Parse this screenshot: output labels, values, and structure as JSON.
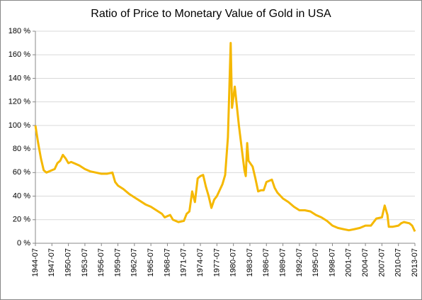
{
  "chart_data": {
    "type": "line",
    "title": "Ratio of Price to Monetary Value of Gold in USA",
    "x": [
      "1944-07",
      "1945-01",
      "1945-07",
      "1946-01",
      "1946-07",
      "1947-01",
      "1947-07",
      "1948-01",
      "1948-07",
      "1949-01",
      "1949-07",
      "1950-01",
      "1950-07",
      "1951-01",
      "1951-07",
      "1952-07",
      "1953-07",
      "1954-07",
      "1955-07",
      "1956-07",
      "1957-07",
      "1958-07",
      "1959-01",
      "1959-07",
      "1960-07",
      "1961-07",
      "1962-07",
      "1963-07",
      "1964-07",
      "1965-07",
      "1966-07",
      "1967-07",
      "1968-01",
      "1968-07",
      "1969-01",
      "1969-07",
      "1970-07",
      "1971-07",
      "1972-01",
      "1972-07",
      "1973-01",
      "1973-07",
      "1974-01",
      "1974-07",
      "1975-01",
      "1975-07",
      "1976-01",
      "1976-07",
      "1977-01",
      "1977-07",
      "1978-07",
      "1979-01",
      "1979-07",
      "1980-01",
      "1980-04",
      "1980-10",
      "1981-07",
      "1982-07",
      "1982-10",
      "1983-01",
      "1983-04",
      "1984-01",
      "1984-07",
      "1985-01",
      "1985-07",
      "1986-01",
      "1986-07",
      "1987-01",
      "1987-07",
      "1988-01",
      "1988-07",
      "1989-07",
      "1990-07",
      "1991-07",
      "1992-07",
      "1993-07",
      "1994-07",
      "1995-07",
      "1996-07",
      "1997-07",
      "1998-07",
      "1999-07",
      "2000-07",
      "2001-07",
      "2002-07",
      "2003-07",
      "2004-07",
      "2005-07",
      "2006-07",
      "2007-07",
      "2008-01",
      "2008-07",
      "2008-10",
      "2009-07",
      "2010-07",
      "2011-01",
      "2011-07",
      "2012-07",
      "2013-01",
      "2013-07"
    ],
    "series": [
      {
        "color": "#f5b800",
        "values": [
          100,
          85,
          72,
          62,
          60,
          61,
          62,
          63,
          68,
          70,
          75,
          72,
          68,
          69,
          68,
          66,
          63,
          61,
          60,
          59,
          59,
          60,
          52,
          49,
          46,
          42,
          39,
          36,
          33,
          31,
          28,
          25,
          22,
          23,
          24,
          20,
          18,
          19,
          25,
          27,
          44,
          35,
          55,
          57,
          58,
          48,
          40,
          30,
          37,
          40,
          50,
          58,
          90,
          170,
          115,
          133,
          100,
          62,
          57,
          85,
          70,
          65,
          55,
          44,
          45,
          45,
          52,
          53,
          54,
          47,
          43,
          38,
          35,
          31,
          28,
          28,
          27,
          24,
          22,
          19,
          15,
          13,
          12,
          11,
          12,
          13,
          15,
          15,
          21,
          22,
          32,
          24,
          14,
          14,
          15,
          17,
          18,
          17,
          15,
          10
        ]
      }
    ],
    "xlim": [
      "1944-07",
      "2013-07"
    ],
    "xticks": [
      "1944-07",
      "1947-07",
      "1950-07",
      "1953-07",
      "1956-07",
      "1959-07",
      "1962-07",
      "1965-07",
      "1968-07",
      "1971-07",
      "1974-07",
      "1977-07",
      "1980-07",
      "1983-07",
      "1986-07",
      "1989-07",
      "1992-07",
      "1995-07",
      "1998-07",
      "2001-07",
      "2004-07",
      "2007-07",
      "2010-07",
      "2013-07"
    ],
    "ylim": [
      0,
      180
    ],
    "yticks": [
      {
        "value": 0,
        "label": "0 %"
      },
      {
        "value": 20,
        "label": "20 %"
      },
      {
        "value": 40,
        "label": "40 %"
      },
      {
        "value": 60,
        "label": "60 %"
      },
      {
        "value": 80,
        "label": "80 %"
      },
      {
        "value": 100,
        "label": "100 %"
      },
      {
        "value": 120,
        "label": "120 %"
      },
      {
        "value": 140,
        "label": "140 %"
      },
      {
        "value": 160,
        "label": "160 %"
      },
      {
        "value": 180,
        "label": "180 %"
      }
    ],
    "grid": true
  }
}
